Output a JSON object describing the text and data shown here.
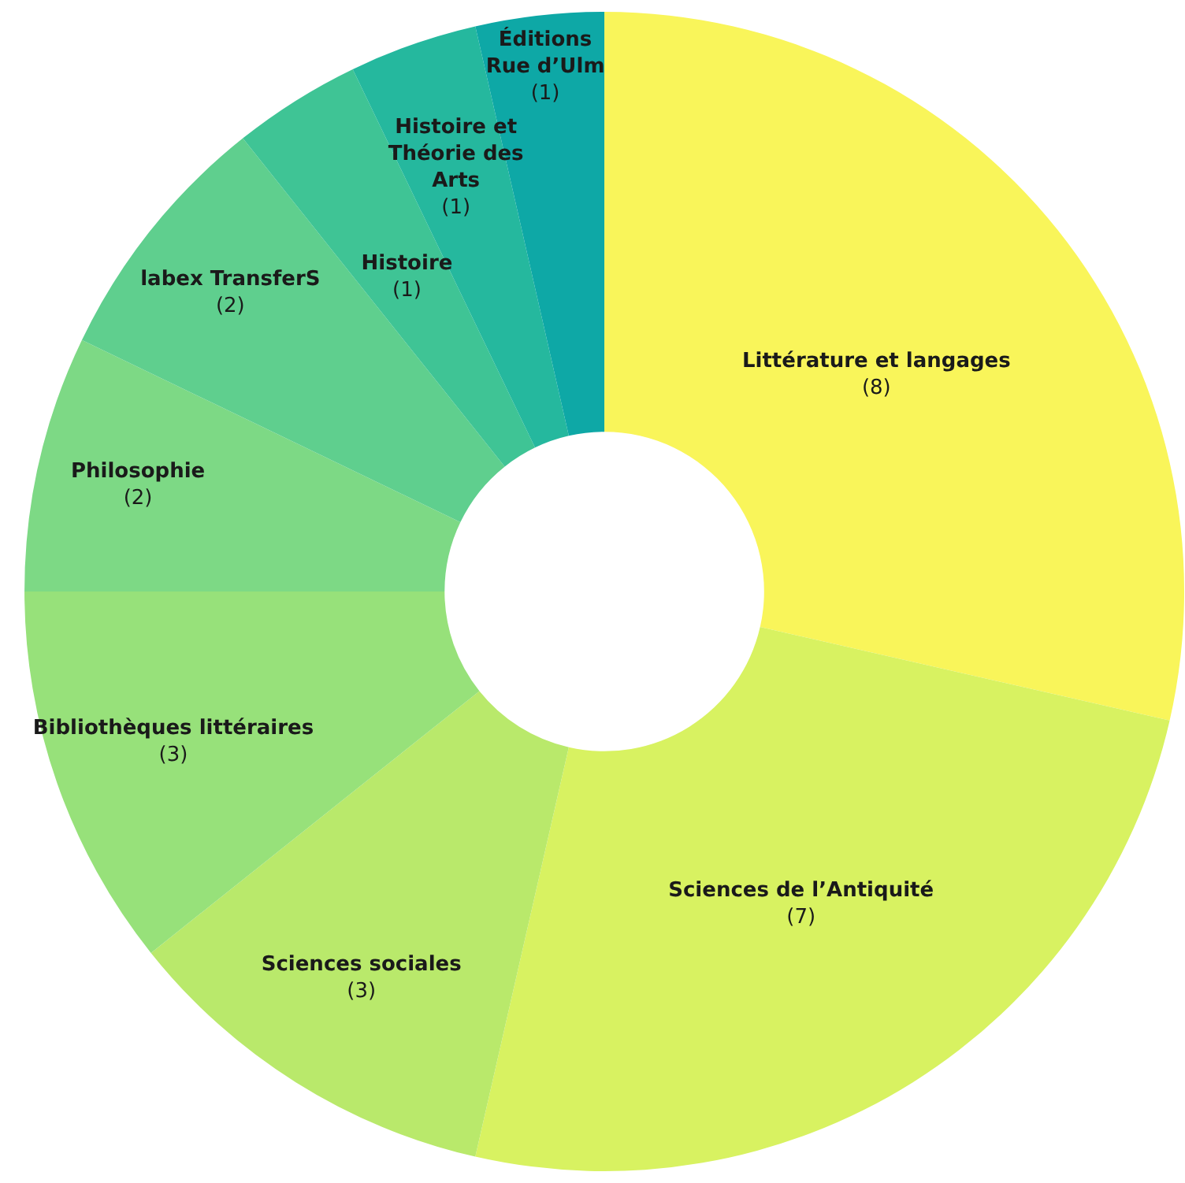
{
  "chart_data": {
    "type": "donut",
    "categories": [
      "Littérature et langages",
      "Sciences de l’Antiquité",
      "Sciences sociales",
      "Bibliothèques littéraires",
      "Philosophie",
      "labex TransferS",
      "Histoire",
      "Histoire et Théorie des Arts",
      "Éditions Rue d’Ulm"
    ],
    "values": [
      8,
      7,
      3,
      3,
      2,
      2,
      1,
      1,
      1
    ],
    "value_labels": [
      "(8)",
      "(7)",
      "(3)",
      "(3)",
      "(2)",
      "(2)",
      "(1)",
      "(1)",
      "(1)"
    ],
    "colors": [
      "#f9f55a",
      "#d8f261",
      "#b9e96b",
      "#97e17a",
      "#7dd985",
      "#5fcf8e",
      "#3fc495",
      "#25b89e",
      "#0ea8a6"
    ],
    "legend": false
  }
}
